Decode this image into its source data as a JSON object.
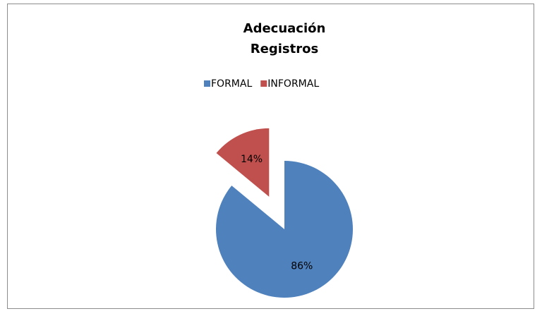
{
  "chart_data": {
    "type": "pie",
    "title": "Adecuación Registros",
    "categories": [
      "FORMAL",
      "INFORMAL"
    ],
    "values": [
      86,
      14
    ],
    "value_labels": [
      "86%",
      "14%"
    ],
    "colors": [
      "#4f81bd",
      "#c0504d"
    ],
    "exploded": [
      false,
      true
    ],
    "legend": "top"
  }
}
